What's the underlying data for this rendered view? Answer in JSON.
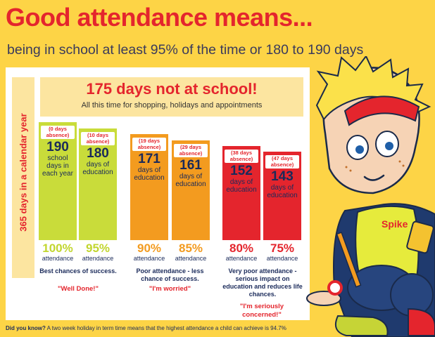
{
  "title": "Good attendance means...",
  "subtitle": "being in school at least 95% of the time or 180 to 190 days",
  "banner": {
    "title": "175 days not at school!",
    "subtitle": "All this time for shopping, holidays and appointments"
  },
  "sidebar_label": "365 days in a calendar year",
  "colors": {
    "green": "#c9dc3a",
    "green_text": "#c2d62e",
    "orange": "#f39b1f",
    "orange_text": "#f39b1f",
    "red": "#e4252d",
    "red_text": "#e4252d"
  },
  "chart_data": {
    "type": "bar",
    "title": "Good attendance means...",
    "categories": [
      "100%",
      "95%",
      "90%",
      "85%",
      "80%",
      "75%"
    ],
    "series": [
      {
        "name": "days of education",
        "values": [
          190,
          180,
          171,
          161,
          152,
          143
        ]
      }
    ],
    "absence_days": [
      0,
      10,
      19,
      29,
      38,
      47
    ],
    "ylim": [
      0,
      190
    ],
    "bars": [
      {
        "absence": "(0 days absence)",
        "days": "190",
        "label": "school days in each year",
        "pct": "100%",
        "group": "green"
      },
      {
        "absence": "(10 days absence)",
        "days": "180",
        "label": "days of education",
        "pct": "95%",
        "group": "green"
      },
      {
        "absence": "(19 days absence)",
        "days": "171",
        "label": "days of education",
        "pct": "90%",
        "group": "orange"
      },
      {
        "absence": "(29 days absence)",
        "days": "161",
        "label": "days of education",
        "pct": "85%",
        "group": "orange"
      },
      {
        "absence": "(38 days absence)",
        "days": "152",
        "label": "days of education",
        "pct": "80%",
        "group": "red"
      },
      {
        "absence": "(47 days absence)",
        "days": "143",
        "label": "days of education",
        "pct": "75%",
        "group": "red"
      }
    ],
    "attendance_label": "attendance",
    "groups": [
      {
        "caption": "Best chances of success.",
        "quote": "\"Well Done!\""
      },
      {
        "caption": "Poor attendance - less chance of success.",
        "quote": "\"I'm worried\""
      },
      {
        "caption": "Very poor attendance - serious impact on education and reduces life chances.",
        "quote": "\"I'm seriously concerned!\""
      }
    ]
  },
  "footer": {
    "lead": "Did you know?",
    "text": " A two week holiday in term time means that the highest attendance a child can achieve is 94.7%"
  },
  "spike": {
    "shirt_label": "Spike"
  }
}
